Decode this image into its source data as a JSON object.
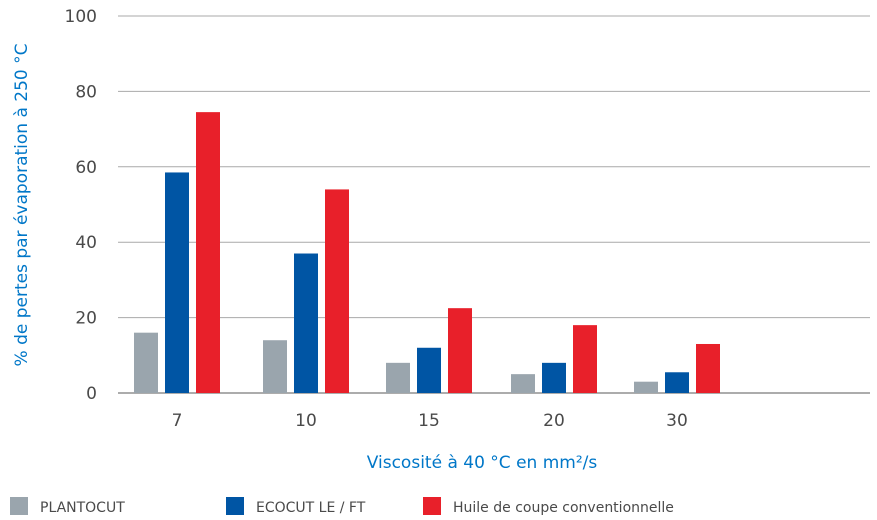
{
  "chart_data": {
    "type": "bar",
    "categories": [
      "7",
      "10",
      "15",
      "20",
      "30"
    ],
    "series": [
      {
        "name": "PLANTOCUT",
        "color": "#9aa5ad",
        "values": [
          16,
          14,
          8,
          5,
          3
        ]
      },
      {
        "name": "ECOCUT LE / FT",
        "color": "#0055a4",
        "values": [
          58.5,
          37,
          12,
          8,
          5.5
        ]
      },
      {
        "name": "Huile de coupe conventionnelle",
        "color": "#e8202a",
        "values": [
          74.5,
          54,
          22.5,
          18,
          13
        ]
      }
    ],
    "yticks": [
      "0",
      "20",
      "40",
      "60",
      "80",
      "100"
    ],
    "ylim": [
      0,
      100
    ],
    "xlabel": "Viscosité à 40 °C en mm²/s",
    "ylabel": "% de pertes par évaporation à 250 °C",
    "grid": true,
    "legend_position": "bottom",
    "axis_title_color": "#0077c8"
  }
}
